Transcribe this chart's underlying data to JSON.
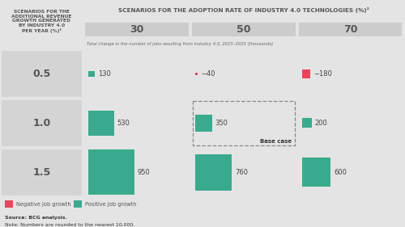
{
  "title_top": "SCENARIOS FOR THE ADOPTION RATE OF INDUSTRY 4.0 TECHNOLOGIES (%)²",
  "title_left": "SCENARIOS FOR THE\nADDITIONAL REVENUE\nGROWTH GENERATED\nBY INDUSTRY 4.0\nPER YEAR (%)¹",
  "subtitle": "Total change in the number of jobs resulting from Industry 4.0, 2015–2025 (thousands)",
  "adoption_rates": [
    "30",
    "50",
    "70"
  ],
  "revenue_growth": [
    "0.5",
    "1.0",
    "1.5"
  ],
  "values": [
    [
      130,
      -40,
      -180
    ],
    [
      530,
      350,
      200
    ],
    [
      950,
      760,
      600
    ]
  ],
  "base_case_row": 1,
  "base_case_col": 1,
  "positive_color": "#3aaa8e",
  "negative_color": "#e8445a",
  "bg_color": "#e4e4e4",
  "header_bg": "#cccccc",
  "row_label_bg": "#d4d4d4",
  "legend_negative": "Negative job growth",
  "legend_positive": "Positive job growth",
  "source_text": "Source: BCG analysis.",
  "note_text": "Note: Numbers are rounded to the nearest 10,000.",
  "max_val": 950
}
